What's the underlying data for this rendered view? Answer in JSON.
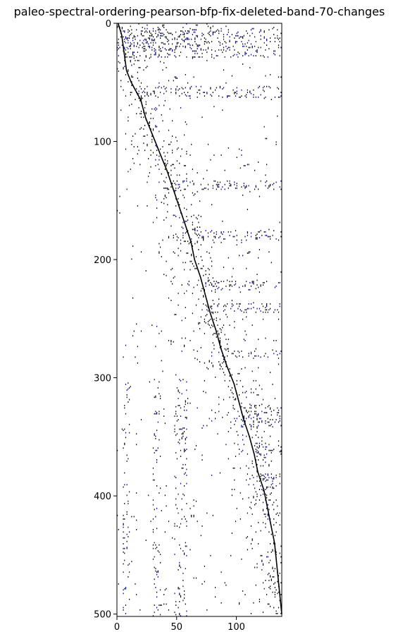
{
  "chart_data": {
    "type": "heatmap",
    "title": "paleo-spectral-ordering-pearson-bfp-fix-deleted-band-70-changes",
    "xlabel": "",
    "ylabel": "",
    "xlim": [
      0,
      138
    ],
    "ylim": [
      502,
      0
    ],
    "x_ticks": [
      0,
      50,
      100
    ],
    "y_ticks": [
      0,
      100,
      200,
      300,
      400,
      500
    ],
    "grid": false,
    "legend": "none",
    "colors": {
      "dense": "#000000",
      "highlight": "#00008b",
      "background": "#ffffff"
    },
    "diagonal_band": [
      [
        1,
        0
      ],
      [
        4,
        10
      ],
      [
        6,
        25
      ],
      [
        8,
        40
      ],
      [
        12,
        50
      ],
      [
        20,
        65
      ],
      [
        24,
        80
      ],
      [
        30,
        95
      ],
      [
        36,
        110
      ],
      [
        42,
        125
      ],
      [
        47,
        140
      ],
      [
        52,
        155
      ],
      [
        57,
        170
      ],
      [
        62,
        185
      ],
      [
        65,
        200
      ],
      [
        70,
        215
      ],
      [
        74,
        230
      ],
      [
        78,
        245
      ],
      [
        83,
        260
      ],
      [
        87,
        275
      ],
      [
        92,
        290
      ],
      [
        98,
        305
      ],
      [
        102,
        320
      ],
      [
        106,
        335
      ],
      [
        111,
        350
      ],
      [
        115,
        365
      ],
      [
        118,
        380
      ],
      [
        123,
        395
      ],
      [
        126,
        410
      ],
      [
        129,
        425
      ],
      [
        132,
        440
      ],
      [
        134,
        460
      ],
      [
        136,
        480
      ],
      [
        138,
        500
      ]
    ],
    "highlight_row_bands": [
      [
        4,
        28
      ],
      [
        53,
        62
      ],
      [
        133,
        140
      ],
      [
        175,
        183
      ],
      [
        217,
        225
      ],
      [
        237,
        244
      ],
      [
        277,
        283
      ],
      [
        322,
        340
      ],
      [
        355,
        365
      ],
      [
        381,
        393
      ]
    ],
    "highlight_col_bands": [
      [
        48,
        58
      ],
      [
        102,
        110
      ],
      [
        120,
        126
      ],
      [
        5,
        10
      ],
      [
        30,
        36
      ]
    ]
  }
}
